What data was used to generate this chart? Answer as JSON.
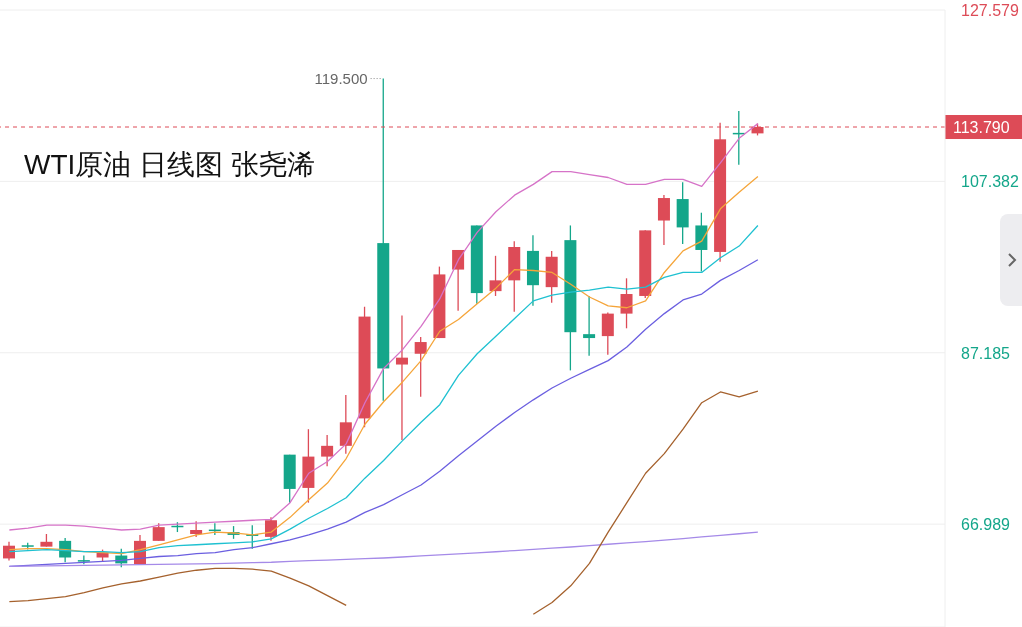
{
  "chart_data": {
    "type": "candlestick",
    "title": "WTI原油 日线图 张尧浠",
    "categories": [
      null,
      null,
      null,
      null,
      null,
      null,
      null,
      null,
      null,
      null,
      null,
      null,
      null,
      null,
      null,
      null,
      null,
      null,
      null,
      null,
      null,
      null,
      null,
      null,
      null,
      null,
      null,
      null,
      null,
      null,
      null,
      null,
      null,
      null,
      null,
      null,
      null,
      null,
      null,
      null,
      null
    ],
    "ohlc": [
      [
        62.95,
        64.91,
        62.72,
        64.45
      ],
      [
        64.5,
        64.79,
        63.99,
        64.4
      ],
      [
        64.34,
        65.83,
        64.34,
        64.91
      ],
      [
        65.02,
        65.37,
        62.49,
        63.06
      ],
      [
        62.75,
        63.29,
        62.26,
        62.7
      ],
      [
        63.06,
        63.99,
        62.6,
        63.64
      ],
      [
        63.29,
        64.1,
        61.91,
        62.37
      ],
      [
        62.26,
        65.72,
        62.26,
        65.02
      ],
      [
        65.02,
        67.1,
        65.02,
        66.64
      ],
      [
        66.8,
        67.22,
        66.06,
        66.7
      ],
      [
        65.83,
        67.33,
        65.49,
        66.3
      ],
      [
        66.35,
        67.1,
        65.72,
        66.25
      ],
      [
        66.06,
        66.76,
        65.26,
        65.72
      ],
      [
        65.83,
        66.87,
        64.1,
        65.6
      ],
      [
        65.49,
        67.8,
        65.02,
        67.45
      ],
      [
        75.18,
        75.18,
        69.52,
        71.14
      ],
      [
        71.26,
        78.18,
        69.52,
        74.95
      ],
      [
        74.95,
        77.49,
        73.8,
        76.22
      ],
      [
        76.22,
        82.22,
        75.3,
        78.99
      ],
      [
        79.45,
        92.61,
        78.41,
        91.45
      ],
      [
        100.11,
        119.5,
        81.53,
        85.34
      ],
      [
        85.8,
        91.57,
        76.91,
        86.61
      ],
      [
        87.07,
        89.03,
        81.99,
        88.45
      ],
      [
        88.92,
        97.34,
        88.92,
        96.42
      ],
      [
        96.99,
        99.3,
        92.15,
        99.3
      ],
      [
        102.19,
        102.19,
        92.96,
        94.22
      ],
      [
        94.45,
        98.61,
        93.88,
        95.72
      ],
      [
        95.72,
        100.34,
        92.03,
        99.65
      ],
      [
        99.19,
        101.03,
        92.72,
        95.15
      ],
      [
        94.92,
        99.19,
        93.07,
        98.5
      ],
      [
        100.46,
        102.19,
        85.11,
        89.61
      ],
      [
        89.38,
        93.88,
        86.84,
        88.92
      ],
      [
        89.15,
        91.92,
        86.95,
        91.8
      ],
      [
        91.8,
        95.96,
        90.07,
        94.11
      ],
      [
        93.88,
        101.61,
        93.65,
        101.61
      ],
      [
        102.77,
        105.77,
        99.88,
        105.42
      ],
      [
        105.3,
        107.27,
        100.0,
        101.96
      ],
      [
        102.19,
        103.69,
        96.76,
        99.3
      ],
      [
        99.07,
        114.3,
        97.92,
        112.34
      ],
      [
        113.1,
        115.69,
        109.34,
        113.0
      ],
      [
        113.04,
        114.2,
        112.8,
        113.79
      ]
    ],
    "colors": [
      "#dd4b57",
      "#14a68a",
      "#dd4b57",
      "#14a68a",
      "#14a68a",
      "#dd4b57",
      "#14a68a",
      "#dd4b57",
      "#dd4b57",
      "#14a68a",
      "#dd4b57",
      "#14a68a",
      "#14a68a",
      "#14a68a",
      "#dd4b57",
      "#14a68a",
      "#dd4b57",
      "#dd4b57",
      "#dd4b57",
      "#dd4b57",
      "#14a68a",
      "#dd4b57",
      "#dd4b57",
      "#dd4b57",
      "#dd4b57",
      "#14a68a",
      "#dd4b57",
      "#dd4b57",
      "#14a68a",
      "#dd4b57",
      "#14a68a",
      "#14a68a",
      "#dd4b57",
      "#dd4b57",
      "#dd4b57",
      "#dd4b57",
      "#14a68a",
      "#14a68a",
      "#dd4b57",
      "#14a68a",
      "#dd4b57"
    ],
    "series": [
      {
        "type": "line",
        "color": "#d673c8",
        "values": [
          66.3,
          66.52,
          66.87,
          66.87,
          66.76,
          66.52,
          66.3,
          66.41,
          66.87,
          66.99,
          67.1,
          67.22,
          67.33,
          67.45,
          67.56,
          69.52,
          72.99,
          74.37,
          76.45,
          81.3,
          85.34,
          87.53,
          90.3,
          93.53,
          98.15,
          101.38,
          103.8,
          105.76,
          107.03,
          108.53,
          108.53,
          108.19,
          107.84,
          107.03,
          107.03,
          107.61,
          107.61,
          106.8,
          109.57,
          112.46,
          114.19
        ]
      },
      {
        "type": "line",
        "color": "#f5a53a",
        "values": [
          63.99,
          64.1,
          64.1,
          63.99,
          63.75,
          63.64,
          63.52,
          63.99,
          64.56,
          65.14,
          65.72,
          66.06,
          65.95,
          65.72,
          66.06,
          67.79,
          69.87,
          71.83,
          74.72,
          78.76,
          81.41,
          83.72,
          86.26,
          89.72,
          91.11,
          92.95,
          94.8,
          96.99,
          96.88,
          96.65,
          95.26,
          93.76,
          92.72,
          92.49,
          93.3,
          96.65,
          99.19,
          100.34,
          104.15,
          106.11,
          107.96
        ]
      },
      {
        "type": "line",
        "color": "#1fc1d1",
        "values": [
          63.75,
          63.87,
          63.99,
          63.87,
          63.75,
          63.75,
          63.64,
          63.75,
          64.22,
          64.45,
          64.56,
          64.68,
          64.79,
          64.91,
          65.25,
          66.41,
          67.68,
          68.83,
          70.1,
          72.41,
          74.49,
          76.8,
          78.99,
          81.07,
          84.53,
          87.07,
          89.14,
          91.22,
          93.3,
          93.99,
          94.34,
          94.57,
          94.92,
          94.68,
          94.92,
          96.07,
          96.65,
          96.65,
          98.38,
          99.76,
          102.19
        ]
      },
      {
        "type": "line",
        "color": "#6b5fe0",
        "values": [
          62.02,
          62.14,
          62.25,
          62.37,
          62.49,
          62.6,
          62.72,
          62.95,
          63.18,
          63.29,
          63.52,
          63.64,
          63.99,
          64.22,
          64.68,
          65.14,
          65.72,
          66.41,
          67.22,
          68.37,
          69.29,
          70.45,
          71.6,
          73.22,
          75.06,
          76.8,
          78.53,
          80.14,
          81.64,
          83.03,
          84.18,
          85.22,
          86.26,
          87.87,
          89.95,
          91.8,
          93.41,
          94.11,
          95.72,
          96.88,
          98.15
        ]
      },
      {
        "type": "line",
        "color": "#a58ae8",
        "values": [
          62.02,
          62.05,
          62.08,
          62.11,
          62.14,
          62.17,
          62.2,
          62.22,
          62.25,
          62.27,
          62.3,
          62.35,
          62.4,
          62.45,
          62.5,
          62.6,
          62.68,
          62.76,
          62.84,
          62.92,
          63.0,
          63.12,
          63.24,
          63.36,
          63.48,
          63.6,
          63.74,
          63.88,
          64.02,
          64.16,
          64.3,
          64.46,
          64.62,
          64.78,
          64.94,
          65.1,
          65.29,
          65.48,
          65.67,
          65.86,
          66.06
        ]
      },
      {
        "type": "line",
        "color": "#a5612d",
        "values": [
          57.87,
          57.98,
          58.21,
          58.45,
          58.91,
          59.48,
          59.95,
          60.29,
          60.75,
          61.22,
          61.56,
          61.79,
          61.79,
          61.68,
          61.45,
          60.64,
          59.72,
          58.56,
          57.41,
          null,
          null,
          null,
          null,
          null,
          null,
          null,
          null,
          null,
          56.37,
          57.75,
          59.72,
          62.37,
          66.06,
          69.52,
          72.99,
          75.3,
          78.18,
          81.3,
          82.57,
          81.99,
          82.68
        ]
      }
    ],
    "ylim": [
      54.87,
      127.579
    ],
    "yticks": [
      66.989,
      87.185,
      107.382,
      127.579
    ],
    "ref_lines": [
      {
        "axis": "y",
        "value": 113.79,
        "label": "113.790",
        "color": "#dd4b57",
        "line_style": "dashed"
      }
    ],
    "annotations": [
      "119.500"
    ],
    "grid": "y",
    "tick_labels": "y"
  }
}
